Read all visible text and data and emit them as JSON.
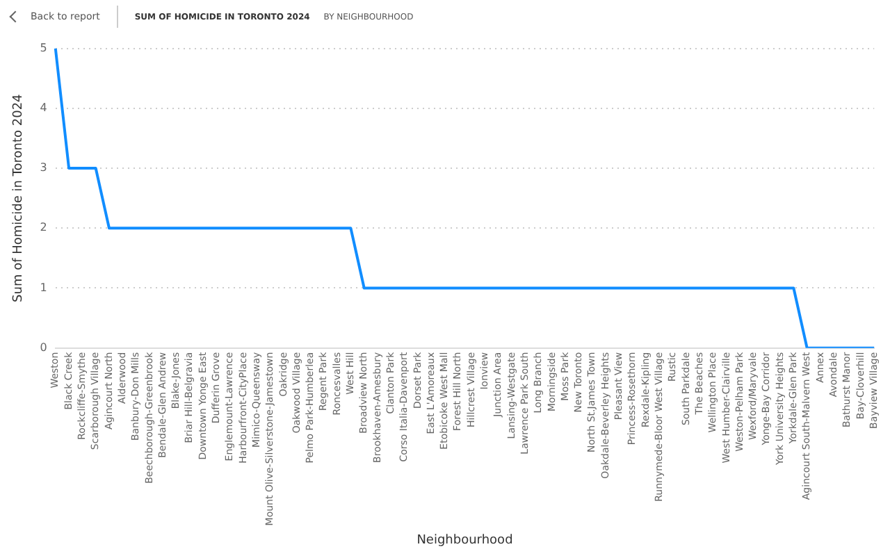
{
  "chart_data": {
    "type": "line",
    "title": "SUM OF HOMICIDE IN TORONTO 2024",
    "subtitle": "BY NEIGHBOURHOOD",
    "annotations": [
      "Back to report"
    ],
    "xlabel": "Neighbourhood",
    "ylabel": "Sum of Homicide in Toronto 2024",
    "categories": [
      "Weston",
      "Black Creek",
      "Rockcliffe-Smythe",
      "Scarborough Village",
      "Agincourt North",
      "Alderwood",
      "Banbury-Don Mills",
      "Beechborough-Greenbrook",
      "Bendale-Glen Andrew",
      "Blake-Jones",
      "Briar Hill-Belgravia",
      "Downtown Yonge East",
      "Dufferin Grove",
      "Englemount-Lawrence",
      "Harbourfront-CityPlace",
      "Mimico-Queensway",
      "Mount Olive-Silverstone-Jamestown",
      "Oakridge",
      "Oakwood Village",
      "Pelmo Park-Humberlea",
      "Regent Park",
      "Roncesvalles",
      "West Hill",
      "Broadview North",
      "Brookhaven-Amesbury",
      "Clanton Park",
      "Corso Italia-Davenport",
      "Dorset Park",
      "East L'Amoreaux",
      "Etobicoke West Mall",
      "Forest Hill North",
      "Hillcrest Village",
      "Ionview",
      "Junction Area",
      "Lansing-Westgate",
      "Lawrence Park South",
      "Long Branch",
      "Morningside",
      "Moss Park",
      "New Toronto",
      "North St.James Town",
      "Oakdale-Beverley Heights",
      "Pleasant View",
      "Princess-Rosethorn",
      "Rexdale-Kipling",
      "Runnymede-Bloor West Village",
      "Rustic",
      "South Parkdale",
      "The Beaches",
      "Wellington Place",
      "West Humber-Clairville",
      "Weston-Pelham Park",
      "Wexford/Maryvale",
      "Yonge-Bay Corridor",
      "York University Heights",
      "Yorkdale-Glen Park",
      "Agincourt South-Malvern West",
      "Annex",
      "Avondale",
      "Bathurst Manor",
      "Bay-Cloverhill",
      "Bayview Village"
    ],
    "series": [
      {
        "color": "#118dff",
        "values": [
          5,
          3,
          3,
          3,
          2,
          2,
          2,
          2,
          2,
          2,
          2,
          2,
          2,
          2,
          2,
          2,
          2,
          2,
          2,
          2,
          2,
          2,
          2,
          1,
          1,
          1,
          1,
          1,
          1,
          1,
          1,
          1,
          1,
          1,
          1,
          1,
          1,
          1,
          1,
          1,
          1,
          1,
          1,
          1,
          1,
          1,
          1,
          1,
          1,
          1,
          1,
          1,
          1,
          1,
          1,
          1,
          0,
          0,
          0,
          0,
          0,
          0
        ]
      }
    ],
    "ylim": [
      0,
      5
    ],
    "yticks": [
      0,
      1,
      2,
      3,
      4,
      5
    ],
    "grid": "y",
    "legend": false,
    "marker": "none",
    "line_style": "solid"
  }
}
